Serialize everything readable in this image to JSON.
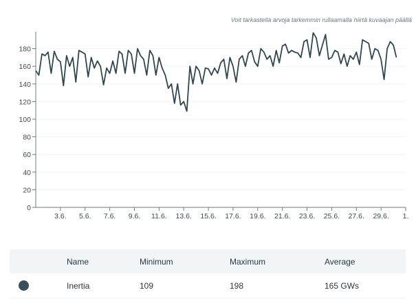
{
  "hint": "Voit tarkastella arvoja tarkemmin rullaamalla hiirtä kuvaajan päällä",
  "chart_data": {
    "type": "line",
    "title": "",
    "xlabel": "",
    "ylabel": "",
    "ylim": [
      0,
      198
    ],
    "xlim_days": [
      1,
      31
    ],
    "x_start": "1.6.",
    "samples_per_day": 4,
    "y_ticks": [
      "0",
      "20",
      "40",
      "60",
      "80",
      "100",
      "120",
      "140",
      "160",
      "180"
    ],
    "y_tick_values": [
      0,
      20,
      40,
      60,
      80,
      100,
      120,
      140,
      160,
      180
    ],
    "x_ticks": [
      "3.6.",
      "5.6.",
      "7.6.",
      "9.6.",
      "11.6.",
      "13.6.",
      "15.6.",
      "17.6.",
      "19.6.",
      "21.6.",
      "23.6.",
      "25.6.",
      "27.6.",
      "29.6.",
      "1."
    ],
    "x_tick_days": [
      3,
      5,
      7,
      9,
      11,
      13,
      15,
      17,
      19,
      21,
      23,
      25,
      27,
      29,
      31
    ],
    "grid": true,
    "series": [
      {
        "name": "Inertia",
        "color": "#2f4550",
        "values": [
          155,
          150,
          174,
          172,
          176,
          152,
          177,
          168,
          165,
          138,
          172,
          160,
          170,
          142,
          178,
          176,
          174,
          148,
          170,
          158,
          166,
          160,
          139,
          158,
          152,
          166,
          152,
          177,
          174,
          152,
          178,
          174,
          152,
          180,
          172,
          168,
          150,
          178,
          172,
          150,
          170,
          158,
          150,
          135,
          140,
          118,
          140,
          116,
          120,
          109,
          160,
          140,
          160,
          155,
          140,
          158,
          157,
          150,
          158,
          152,
          164,
          168,
          146,
          170,
          160,
          142,
          168,
          172,
          160,
          175,
          178,
          165,
          160,
          180,
          176,
          168,
          172,
          160,
          178,
          164,
          183,
          185,
          175,
          178,
          176,
          175,
          170,
          188,
          190,
          170,
          198,
          192,
          172,
          184,
          196,
          168,
          170,
          178,
          176,
          163,
          174,
          160,
          172,
          168,
          176,
          162,
          190,
          188,
          186,
          168,
          180,
          178,
          168,
          145,
          180,
          188,
          184,
          170
        ]
      }
    ]
  },
  "table": {
    "headers": {
      "name": "Name",
      "min": "Minimum",
      "max": "Maximum",
      "avg": "Average"
    },
    "rows": [
      {
        "name": "Inertia",
        "min": "109",
        "max": "198",
        "avg": "165 GWs",
        "color": "#3a4f5a"
      }
    ]
  }
}
